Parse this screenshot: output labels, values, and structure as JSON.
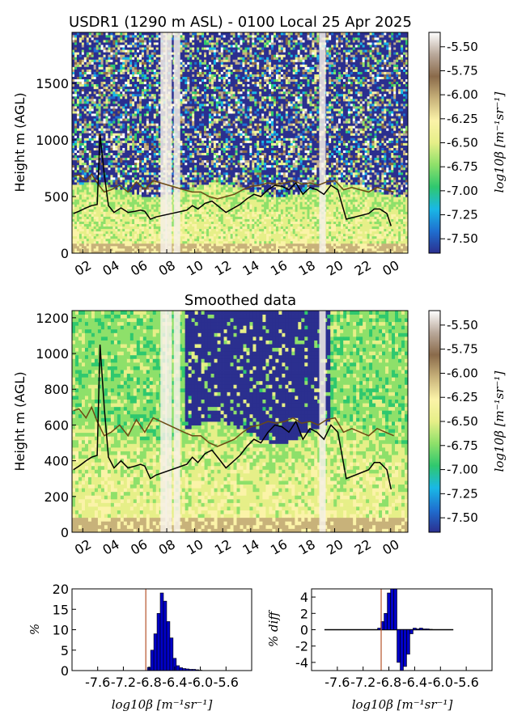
{
  "title": "USDR1 (1290 m ASL) - 0100 Local 25 Apr 2025",
  "colorbar_label": "log10β [m⁻¹sr⁻¹]",
  "colors": {
    "scale": [
      "#2b2f8f",
      "#1f6fd0",
      "#19b8e6",
      "#2fc86e",
      "#8ee06a",
      "#e6ef88",
      "#fbf3a8",
      "#c8b27a",
      "#8a6a4a",
      "#b9a89a",
      "#ffffff"
    ],
    "pbl_line": "#000000",
    "aerosol_line": "#6b4a14",
    "hist_bar": "#0000c8",
    "ref_line": "#b5532a"
  },
  "chart_data": [
    {
      "id": "raw",
      "type": "heatmap",
      "title": "",
      "ylabel": "Height m (AGL)",
      "xticks": [
        "02",
        "04",
        "06",
        "08",
        "10",
        "12",
        "14",
        "16",
        "18",
        "20",
        "22",
        "00"
      ],
      "x_hours": [
        1.0,
        25.0
      ],
      "ylim": [
        0,
        1950
      ],
      "yticks": [
        0,
        500,
        1000,
        1500
      ],
      "colorbar_ticks": [
        "-5.50",
        "-5.75",
        "-6.00",
        "-6.25",
        "-6.50",
        "-6.75",
        "-7.00",
        "-7.25",
        "-7.50"
      ],
      "colorbar_range": [
        -7.65,
        -5.35
      ],
      "series": [
        {
          "x": [
            1.1,
            1.5,
            2.0,
            2.4,
            2.8,
            3.0,
            3.3,
            3.6,
            4.0,
            4.5,
            5.0,
            5.5,
            5.9,
            6.2,
            6.6,
            7.0,
            9.2,
            9.6,
            10.0,
            10.5,
            11.0,
            11.5,
            12.0,
            13.0,
            13.5,
            14.0,
            14.5,
            15.0,
            15.5,
            16.0,
            16.5,
            17.0,
            17.5,
            18.0,
            18.5,
            19.0,
            19.5,
            20.0,
            20.3,
            20.6,
            22.2,
            22.6,
            23.0,
            23.5,
            23.8
          ],
          "y": [
            350,
            370,
            400,
            420,
            430,
            1050,
            700,
            420,
            360,
            400,
            360,
            370,
            380,
            370,
            300,
            320,
            380,
            420,
            390,
            440,
            460,
            410,
            360,
            430,
            480,
            520,
            500,
            560,
            600,
            590,
            560,
            620,
            520,
            580,
            560,
            520,
            600,
            560,
            430,
            300,
            350,
            390,
            390,
            350,
            240
          ]
        },
        {
          "x": [
            1.1,
            1.5,
            2.0,
            2.4,
            2.8,
            3.3,
            3.8,
            4.4,
            5.0,
            5.6,
            6.2,
            6.8,
            9.0,
            9.6,
            10.2,
            10.8,
            11.4,
            12.0,
            12.6,
            13.2,
            13.8,
            14.4,
            15.0,
            15.6,
            16.2,
            16.8,
            17.4,
            18.0,
            18.6,
            19.2,
            19.8,
            20.4,
            21.0,
            21.6,
            22.2,
            22.8,
            23.4,
            24.0
          ],
          "y": [
            680,
            690,
            640,
            700,
            620,
            540,
            560,
            600,
            540,
            630,
            560,
            640,
            560,
            540,
            540,
            500,
            480,
            500,
            520,
            560,
            590,
            600,
            620,
            610,
            620,
            640,
            610,
            620,
            600,
            630,
            640,
            560,
            580,
            560,
            540,
            580,
            560,
            540
          ]
        }
      ]
    },
    {
      "id": "smoothed",
      "type": "heatmap",
      "title": "Smoothed data",
      "ylabel": "Height m (AGL)",
      "xticks": [
        "02",
        "04",
        "06",
        "08",
        "10",
        "12",
        "14",
        "16",
        "18",
        "20",
        "22",
        "00"
      ],
      "x_hours": [
        1.0,
        25.0
      ],
      "ylim": [
        0,
        1240
      ],
      "yticks": [
        0,
        200,
        400,
        600,
        800,
        1000,
        1200
      ],
      "colorbar_ticks": [
        "-5.50",
        "-5.75",
        "-6.00",
        "-6.25",
        "-6.50",
        "-6.75",
        "-7.00",
        "-7.25",
        "-7.50"
      ],
      "colorbar_range": [
        -7.65,
        -5.35
      ]
    },
    {
      "id": "hist",
      "type": "bar",
      "ylabel": "%",
      "xlabel": "log10β [m⁻¹sr⁻¹]",
      "xticks": [
        "-7.6",
        "-7.2",
        "-6.8",
        "-6.4",
        "-6.0",
        "-5.6"
      ],
      "xlim": [
        -8.0,
        -5.2
      ],
      "ylim": [
        0,
        20
      ],
      "yticks": [
        0,
        5,
        10,
        15,
        20
      ],
      "ref_x": -6.85,
      "x": [
        -6.8,
        -6.75,
        -6.7,
        -6.65,
        -6.6,
        -6.55,
        -6.5,
        -6.45,
        -6.4,
        -6.35,
        -6.3,
        -6.25,
        -6.2,
        -6.15,
        -6.1,
        -6.05,
        -6.0
      ],
      "values": [
        0.8,
        5,
        9,
        14,
        19,
        17,
        12,
        8,
        3,
        1.2,
        0.7,
        0.5,
        0.4,
        0.3,
        0.3,
        0.2,
        0.1
      ]
    },
    {
      "id": "diff",
      "type": "bar",
      "ylabel": "% diff",
      "xlabel": "log10β [m⁻¹sr⁻¹]",
      "xticks": [
        "-7.6",
        "-7.2",
        "-6.8",
        "-6.4",
        "-6.0",
        "-5.6"
      ],
      "xlim": [
        -8.0,
        -5.2
      ],
      "ylim": [
        -5,
        5
      ],
      "yticks": [
        4,
        2,
        0,
        -2,
        -4
      ],
      "ref_x": -6.92,
      "x": [
        -6.95,
        -6.9,
        -6.85,
        -6.8,
        -6.75,
        -6.7,
        -6.65,
        -6.6,
        -6.55,
        -6.5,
        -6.45,
        -6.4,
        -6.35,
        -6.3,
        -6.25,
        -6.2,
        -6.15
      ],
      "values": [
        0.2,
        1,
        2,
        4.5,
        5,
        5,
        -4,
        -5,
        -4.5,
        -3,
        -0.5,
        0.2,
        0.1,
        0.2,
        0.1,
        0.1,
        0.05
      ]
    }
  ]
}
